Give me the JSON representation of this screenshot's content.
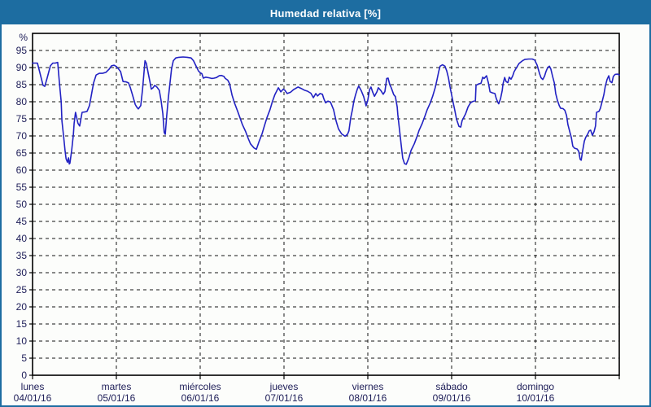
{
  "window": {
    "title": "Humedad relativa [%]"
  },
  "colors": {
    "titlebar_bg": "#1d6da1",
    "page_border": "#1d6da1",
    "plot_frame": "#000000",
    "gridline": "#151515",
    "axis_text": "#20205a",
    "series_line": "#2222c3",
    "background": "#fcfdfb"
  },
  "chart_data": {
    "type": "line",
    "title": "Humedad relativa [%]",
    "ylabel": "%",
    "legend": null,
    "grid": "dashed horizontal every 5, dashed vertical every day",
    "y_axis": {
      "min": 0,
      "max": 100,
      "tick_min": 0,
      "tick_max": 95,
      "tick_step": 5,
      "unit": "%"
    },
    "x_axis": {
      "unit": "hours",
      "min": 0,
      "max": 168,
      "gridline_every": 24,
      "day_labels": [
        {
          "weekday": "lunes",
          "date": "04/01/16"
        },
        {
          "weekday": "martes",
          "date": "05/01/16"
        },
        {
          "weekday": "miércoles",
          "date": "06/01/16"
        },
        {
          "weekday": "jueves",
          "date": "07/01/16"
        },
        {
          "weekday": "viernes",
          "date": "08/01/16"
        },
        {
          "weekday": "sábado",
          "date": "09/01/16"
        },
        {
          "weekday": "domingo",
          "date": "10/01/16"
        }
      ]
    },
    "series": [
      {
        "name": "Humedad relativa",
        "points": [
          [
            0,
            91.3
          ],
          [
            1.4,
            91.3
          ],
          [
            2.1,
            88.5
          ],
          [
            3,
            84.8
          ],
          [
            3.5,
            84.5
          ],
          [
            4.2,
            87
          ],
          [
            5.1,
            90.5
          ],
          [
            5.8,
            91.3
          ],
          [
            6.5,
            91.3
          ],
          [
            7.2,
            91.5
          ],
          [
            7.7,
            85.6
          ],
          [
            8.2,
            80
          ],
          [
            8.4,
            74.4
          ],
          [
            8.9,
            69.8
          ],
          [
            9.3,
            65.8
          ],
          [
            9.6,
            63.3
          ],
          [
            10,
            62.3
          ],
          [
            10.3,
            63.6
          ],
          [
            10.5,
            61.8
          ],
          [
            10.7,
            62
          ],
          [
            11.2,
            65.8
          ],
          [
            11.7,
            70.5
          ],
          [
            11.9,
            73.7
          ],
          [
            12.3,
            76.9
          ],
          [
            13,
            73.7
          ],
          [
            13.5,
            72.9
          ],
          [
            14.2,
            76.9
          ],
          [
            14.9,
            77
          ],
          [
            15.6,
            77.2
          ],
          [
            16.3,
            78.9
          ],
          [
            17,
            82.9
          ],
          [
            17.5,
            85.6
          ],
          [
            18.2,
            87.8
          ],
          [
            19.1,
            88.3
          ],
          [
            20,
            88.3
          ],
          [
            21,
            88.6
          ],
          [
            21.9,
            89.5
          ],
          [
            22.6,
            90.5
          ],
          [
            23.3,
            90.7
          ],
          [
            24,
            90.3
          ],
          [
            24.7,
            89.5
          ],
          [
            25.2,
            88.8
          ],
          [
            25.9,
            85.9
          ],
          [
            26.8,
            85.8
          ],
          [
            27.5,
            85.5
          ],
          [
            28,
            84.1
          ],
          [
            28.7,
            81.7
          ],
          [
            29.4,
            79.2
          ],
          [
            29.8,
            78.5
          ],
          [
            30.3,
            77.9
          ],
          [
            31,
            78.9
          ],
          [
            31.5,
            83.7
          ],
          [
            31.9,
            88.4
          ],
          [
            32.2,
            92
          ],
          [
            32.6,
            91.2
          ],
          [
            33.1,
            88.4
          ],
          [
            33.6,
            85.9
          ],
          [
            34,
            83.7
          ],
          [
            34.5,
            84.1
          ],
          [
            35,
            84.8
          ],
          [
            35.7,
            84.2
          ],
          [
            36.3,
            83.3
          ],
          [
            36.8,
            80.4
          ],
          [
            37.3,
            76.5
          ],
          [
            37.7,
            71
          ],
          [
            38,
            70.5
          ],
          [
            38.4,
            75.7
          ],
          [
            38.9,
            81.2
          ],
          [
            39.4,
            85.9
          ],
          [
            39.8,
            89.6
          ],
          [
            40.3,
            92
          ],
          [
            41,
            92.8
          ],
          [
            41.9,
            93
          ],
          [
            43.1,
            93.1
          ],
          [
            44.3,
            93
          ],
          [
            45.4,
            92.8
          ],
          [
            46.1,
            92
          ],
          [
            46.8,
            90.5
          ],
          [
            47.5,
            89
          ],
          [
            48,
            88.5
          ],
          [
            48.5,
            88.2
          ],
          [
            48.9,
            86.9
          ],
          [
            49.6,
            87.2
          ],
          [
            50.6,
            87
          ],
          [
            51.3,
            86.8
          ],
          [
            52,
            86.9
          ],
          [
            52.7,
            87.1
          ],
          [
            53.4,
            87.6
          ],
          [
            54.1,
            87.7
          ],
          [
            54.8,
            87.4
          ],
          [
            55.2,
            86.8
          ],
          [
            55.9,
            86.3
          ],
          [
            56.4,
            85.3
          ],
          [
            57.1,
            82
          ],
          [
            57.8,
            79.7
          ],
          [
            58.7,
            77.3
          ],
          [
            59.4,
            75.3
          ],
          [
            60.1,
            73.3
          ],
          [
            61,
            71.3
          ],
          [
            61.7,
            69.4
          ],
          [
            62.4,
            67.7
          ],
          [
            63.4,
            66.5
          ],
          [
            64.1,
            66.1
          ],
          [
            64.8,
            68.2
          ],
          [
            65.7,
            70.6
          ],
          [
            66.4,
            73
          ],
          [
            67.1,
            75.3
          ],
          [
            68,
            77.7
          ],
          [
            68.7,
            80.1
          ],
          [
            69.4,
            82.1
          ],
          [
            70.4,
            84.1
          ],
          [
            71.1,
            82.9
          ],
          [
            71.8,
            83.7
          ],
          [
            72.2,
            83.4
          ],
          [
            72.9,
            82.4
          ],
          [
            73.9,
            82.8
          ],
          [
            74.8,
            83.6
          ],
          [
            76,
            84.3
          ],
          [
            76.9,
            83.9
          ],
          [
            77.8,
            83.4
          ],
          [
            78.7,
            83.1
          ],
          [
            79.7,
            82.5
          ],
          [
            80.4,
            81.2
          ],
          [
            81.1,
            82.4
          ],
          [
            81.6,
            81.7
          ],
          [
            82.3,
            82.4
          ],
          [
            83,
            82.2
          ],
          [
            83.4,
            80.9
          ],
          [
            83.9,
            79.7
          ],
          [
            84.6,
            80.2
          ],
          [
            85.3,
            79.9
          ],
          [
            86.2,
            77.7
          ],
          [
            86.9,
            74.5
          ],
          [
            87.6,
            72.1
          ],
          [
            88.5,
            70.6
          ],
          [
            89.5,
            69.9
          ],
          [
            90.2,
            70.5
          ],
          [
            90.6,
            71.5
          ],
          [
            91.1,
            75.3
          ],
          [
            91.6,
            77.7
          ],
          [
            92,
            80.1
          ],
          [
            92.5,
            82.1
          ],
          [
            93,
            83.7
          ],
          [
            93.4,
            84.6
          ],
          [
            94.1,
            83.3
          ],
          [
            94.8,
            81.5
          ],
          [
            95.5,
            78.8
          ],
          [
            96,
            80.5
          ],
          [
            96.5,
            83.5
          ],
          [
            96.9,
            84.3
          ],
          [
            97.4,
            82.8
          ],
          [
            97.9,
            81.6
          ],
          [
            98.6,
            82.9
          ],
          [
            99,
            84.1
          ],
          [
            99.7,
            83.3
          ],
          [
            100.4,
            82.2
          ],
          [
            100.9,
            83
          ],
          [
            101.4,
            86.8
          ],
          [
            101.8,
            86.9
          ],
          [
            102.3,
            85
          ],
          [
            102.7,
            84.1
          ],
          [
            103.4,
            82.1
          ],
          [
            103.9,
            81.5
          ],
          [
            104.4,
            78.5
          ],
          [
            104.6,
            76.2
          ],
          [
            105.1,
            71.5
          ],
          [
            105.6,
            67
          ],
          [
            106,
            63.5
          ],
          [
            106.5,
            61.9
          ],
          [
            107,
            61.7
          ],
          [
            107.7,
            63.4
          ],
          [
            108.4,
            65.8
          ],
          [
            109.3,
            67.7
          ],
          [
            110,
            69.6
          ],
          [
            110.7,
            71.7
          ],
          [
            111.6,
            73.7
          ],
          [
            112.3,
            75.7
          ],
          [
            113,
            77.7
          ],
          [
            113.9,
            79.7
          ],
          [
            114.6,
            81.7
          ],
          [
            115.3,
            84.1
          ],
          [
            115.8,
            86.4
          ],
          [
            116.3,
            88.8
          ],
          [
            116.7,
            90.4
          ],
          [
            117.4,
            90.8
          ],
          [
            118.1,
            90.4
          ],
          [
            118.6,
            89
          ],
          [
            119.1,
            87
          ],
          [
            119.5,
            84.5
          ],
          [
            120,
            82
          ],
          [
            120.5,
            79.5
          ],
          [
            120.9,
            77.5
          ],
          [
            121.4,
            74.9
          ],
          [
            122.1,
            72.8
          ],
          [
            122.6,
            72.6
          ],
          [
            123,
            74.5
          ],
          [
            124,
            76.5
          ],
          [
            124.7,
            78.5
          ],
          [
            125.4,
            79.7
          ],
          [
            126.1,
            80.1
          ],
          [
            126.8,
            80.3
          ],
          [
            127,
            84.8
          ],
          [
            127.7,
            85.2
          ],
          [
            128.4,
            85.4
          ],
          [
            128.9,
            87.2
          ],
          [
            129.3,
            86.8
          ],
          [
            130,
            87.6
          ],
          [
            130.5,
            85.6
          ],
          [
            131,
            82.9
          ],
          [
            131.7,
            82.6
          ],
          [
            132.4,
            82.4
          ],
          [
            132.8,
            80.9
          ],
          [
            133.3,
            79.7
          ],
          [
            133.5,
            79.4
          ],
          [
            134,
            80.9
          ],
          [
            134.5,
            83.3
          ],
          [
            134.7,
            85.2
          ],
          [
            135.2,
            87.1
          ],
          [
            135.6,
            85.9
          ],
          [
            136.1,
            85.6
          ],
          [
            136.5,
            87.2
          ],
          [
            137,
            86.6
          ],
          [
            137.5,
            87.6
          ],
          [
            137.9,
            88.8
          ],
          [
            138.6,
            90
          ],
          [
            139.3,
            91.2
          ],
          [
            140.3,
            92
          ],
          [
            141,
            92.4
          ],
          [
            142.1,
            92.5
          ],
          [
            143.1,
            92.5
          ],
          [
            143.8,
            92.2
          ],
          [
            144.5,
            90.7
          ],
          [
            145.2,
            88.2
          ],
          [
            145.6,
            87
          ],
          [
            146.1,
            86.5
          ],
          [
            146.6,
            87.5
          ],
          [
            147,
            88.8
          ],
          [
            147.5,
            90
          ],
          [
            148,
            90.4
          ],
          [
            148.4,
            89.6
          ],
          [
            148.9,
            87.5
          ],
          [
            149.4,
            85.5
          ],
          [
            149.8,
            82.4
          ],
          [
            150.3,
            80.4
          ],
          [
            150.8,
            78.9
          ],
          [
            151.2,
            78.1
          ],
          [
            151.9,
            78
          ],
          [
            152.4,
            77.5
          ],
          [
            152.9,
            76
          ],
          [
            153.3,
            73.3
          ],
          [
            153.8,
            71.3
          ],
          [
            154.3,
            69.4
          ],
          [
            154.7,
            67
          ],
          [
            155.2,
            66.4
          ],
          [
            155.9,
            66.2
          ],
          [
            156.4,
            65.5
          ],
          [
            156.8,
            63.2
          ],
          [
            157.1,
            62.9
          ],
          [
            157.5,
            65.5
          ],
          [
            158,
            68.5
          ],
          [
            158.4,
            69.6
          ],
          [
            158.9,
            70.4
          ],
          [
            159.4,
            71.5
          ],
          [
            159.8,
            71.7
          ],
          [
            160.3,
            70.2
          ],
          [
            160.8,
            71.3
          ],
          [
            161.2,
            72.9
          ],
          [
            161.5,
            76.9
          ],
          [
            162.2,
            77.2
          ],
          [
            162.6,
            78.1
          ],
          [
            163.1,
            80.1
          ],
          [
            163.6,
            82.1
          ],
          [
            164,
            84.5
          ],
          [
            164.5,
            86.5
          ],
          [
            165,
            87.6
          ],
          [
            165.4,
            85.9
          ],
          [
            165.9,
            85.6
          ],
          [
            166.3,
            87.4
          ],
          [
            166.8,
            88
          ],
          [
            167.5,
            88.1
          ],
          [
            168,
            87.8
          ]
        ]
      }
    ]
  }
}
